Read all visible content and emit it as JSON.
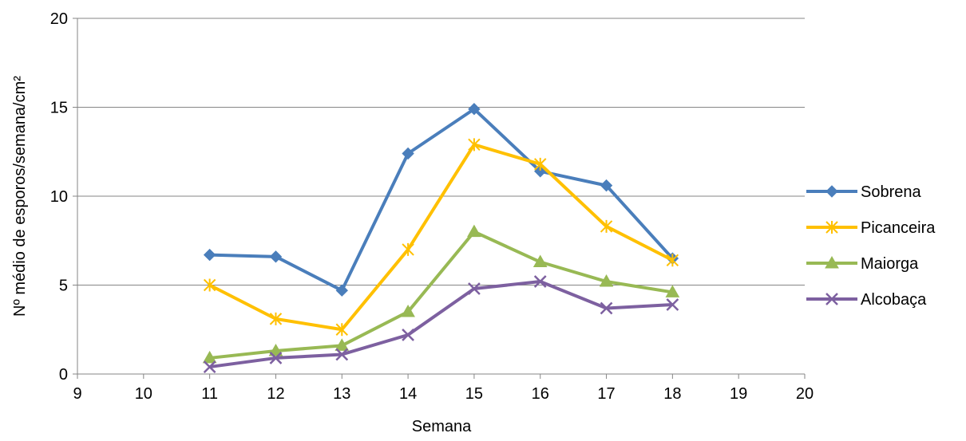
{
  "chart_data": {
    "type": "line",
    "xlabel": "Semana",
    "ylabel": "Nº  médio de esporos/semana/cm²",
    "xlim": [
      9,
      20
    ],
    "ylim": [
      0,
      20
    ],
    "x_ticks": [
      9,
      10,
      11,
      12,
      13,
      14,
      15,
      16,
      17,
      18,
      19,
      20
    ],
    "y_ticks": [
      0,
      5,
      10,
      15,
      20
    ],
    "grid": "horizontal major gridlines",
    "legend_position": "right",
    "x": [
      11,
      12,
      13,
      14,
      15,
      16,
      17,
      18
    ],
    "series": [
      {
        "name": "Sobrena",
        "color": "#4a7ebb",
        "marker": "diamond",
        "values": [
          6.7,
          6.6,
          4.7,
          12.4,
          14.9,
          11.4,
          10.6,
          6.5
        ]
      },
      {
        "name": "Picanceira",
        "color": "#ffc000",
        "marker": "star",
        "values": [
          5.0,
          3.1,
          2.5,
          7.0,
          12.9,
          11.8,
          8.3,
          6.4
        ]
      },
      {
        "name": "Maiorga",
        "color": "#98b954",
        "marker": "triangle",
        "values": [
          0.9,
          1.3,
          1.6,
          3.5,
          8.0,
          6.3,
          5.2,
          4.6
        ]
      },
      {
        "name": "Alcobaça",
        "color": "#7d60a0",
        "marker": "x",
        "values": [
          0.4,
          0.9,
          1.1,
          2.2,
          4.8,
          5.2,
          3.7,
          3.9
        ]
      }
    ]
  }
}
